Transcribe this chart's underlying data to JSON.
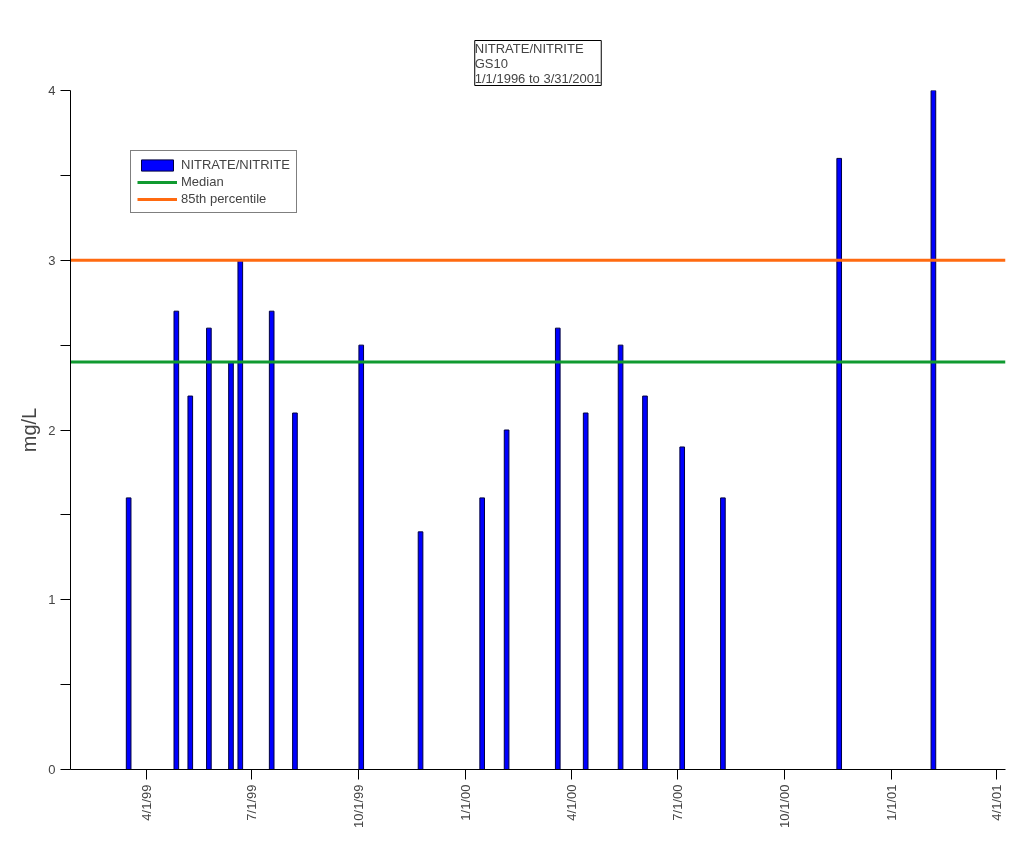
{
  "chart_data": {
    "type": "bar",
    "title": "NITRATE/NITRITE\nGS10\n1/1/1996 to 3/31/2001",
    "ylabel": "mg/L",
    "x": [
      "1999-03-17",
      "1999-04-27",
      "1999-05-09",
      "1999-05-25",
      "1999-06-13",
      "1999-06-21",
      "1999-07-06",
      "1999-07-18",
      "1999-08-07",
      "1999-10-03",
      "1999-11-23",
      "2000-01-15",
      "2000-02-05",
      "2000-03-20",
      "2000-04-13",
      "2000-05-13",
      "2000-06-03",
      "2000-07-05",
      "2000-08-09",
      "2000-11-17",
      "2001-02-06"
    ],
    "series": [
      {
        "name": "NITRATE/NITRITE",
        "color": "#0000ff",
        "values": [
          1.6,
          2.7,
          2.2,
          2.6,
          2.4,
          3.0,
          null,
          2.7,
          2.1,
          2.5,
          1.4,
          1.6,
          2.0,
          2.6,
          2.1,
          2.5,
          2.2,
          1.9,
          1.6,
          3.6,
          4.0
        ]
      }
    ],
    "ref_lines": [
      {
        "axis": "y",
        "value": 2.4,
        "label": "Median",
        "color": "#109a30"
      },
      {
        "axis": "y",
        "value": 3.0,
        "label": "85th percentile",
        "color": "#ff6a10"
      }
    ],
    "xlim": [
      "1999-01-26",
      "2001-04-09"
    ],
    "xticks": [
      {
        "value": "1999-04-01",
        "label": "4/1/99"
      },
      {
        "value": "1999-07-01",
        "label": "7/1/99"
      },
      {
        "value": "1999-10-01",
        "label": "10/1/99"
      },
      {
        "value": "2000-01-01",
        "label": "1/1/00"
      },
      {
        "value": "2000-04-01",
        "label": "4/1/00"
      },
      {
        "value": "2000-07-01",
        "label": "7/1/00"
      },
      {
        "value": "2000-10-01",
        "label": "10/1/00"
      },
      {
        "value": "2001-01-01",
        "label": "1/1/01"
      },
      {
        "value": "2001-04-01",
        "label": "4/1/01"
      }
    ],
    "ylim": [
      0,
      4
    ],
    "yticks": [
      0,
      {
        "value": 0.5,
        "label": null
      },
      1,
      {
        "value": 1.5,
        "label": null
      },
      2,
      {
        "value": 2.5,
        "label": null
      },
      3,
      {
        "value": 3.5,
        "label": null
      },
      4
    ],
    "legend": "top left",
    "grid": false
  }
}
